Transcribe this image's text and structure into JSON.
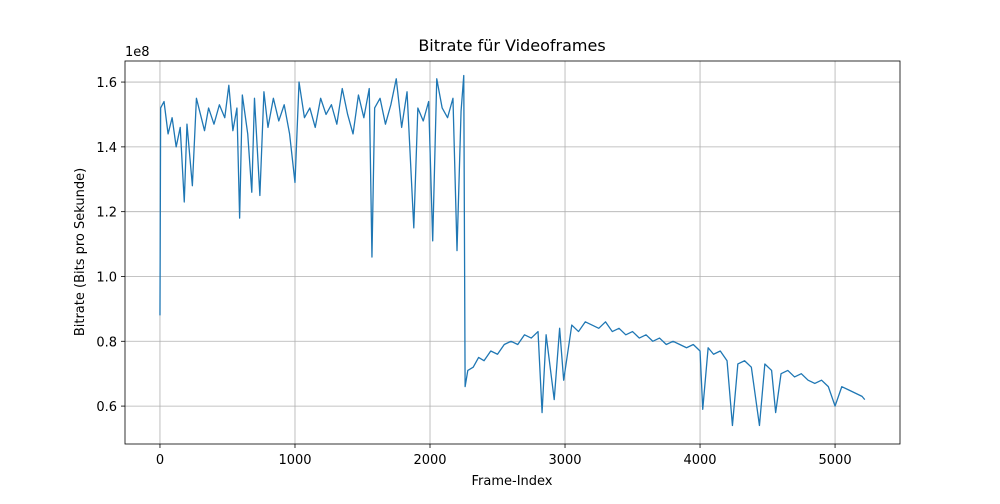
{
  "chart_data": {
    "type": "line",
    "title": "Bitrate für Videoframes",
    "xlabel": "Frame-Index",
    "ylabel": "Bitrate (Bits pro Sekunde)",
    "y_offset_label": "1e8",
    "color": "#1f77b4",
    "grid": true,
    "xlim": [
      -259,
      5481
    ],
    "ylim": [
      48300000,
      166500000
    ],
    "xticks": [
      0,
      1000,
      2000,
      3000,
      4000,
      5000
    ],
    "yticks": [
      {
        "value": 60000000,
        "label": "0.6"
      },
      {
        "value": 80000000,
        "label": "0.8"
      },
      {
        "value": 100000000,
        "label": "1.0"
      },
      {
        "value": 120000000,
        "label": "1.2"
      },
      {
        "value": 140000000,
        "label": "1.4"
      },
      {
        "value": 160000000,
        "label": "1.6"
      }
    ],
    "x": [
      0,
      5,
      30,
      60,
      90,
      120,
      150,
      180,
      200,
      240,
      270,
      300,
      330,
      360,
      400,
      440,
      480,
      510,
      540,
      570,
      590,
      610,
      650,
      680,
      700,
      740,
      770,
      800,
      840,
      880,
      920,
      960,
      1000,
      1030,
      1070,
      1110,
      1150,
      1190,
      1230,
      1270,
      1310,
      1350,
      1390,
      1430,
      1470,
      1510,
      1550,
      1570,
      1590,
      1630,
      1670,
      1710,
      1750,
      1790,
      1830,
      1880,
      1910,
      1950,
      1990,
      2020,
      2050,
      2090,
      2130,
      2170,
      2200,
      2230,
      2250,
      2260,
      2280,
      2320,
      2360,
      2400,
      2450,
      2500,
      2550,
      2600,
      2650,
      2700,
      2750,
      2800,
      2830,
      2860,
      2920,
      2960,
      2990,
      3050,
      3100,
      3150,
      3200,
      3250,
      3300,
      3350,
      3400,
      3450,
      3500,
      3550,
      3600,
      3650,
      3700,
      3750,
      3800,
      3850,
      3900,
      3950,
      4000,
      4020,
      4060,
      4100,
      4150,
      4200,
      4240,
      4280,
      4330,
      4380,
      4440,
      4480,
      4530,
      4560,
      4600,
      4650,
      4700,
      4750,
      4800,
      4850,
      4900,
      4950,
      5000,
      5050,
      5100,
      5150,
      5200,
      5220
    ],
    "values": [
      88000000.0,
      152000000.0,
      154000000.0,
      144000000.0,
      149000000.0,
      140000000.0,
      146000000.0,
      123000000.0,
      147000000.0,
      128000000.0,
      155000000.0,
      150000000.0,
      145000000.0,
      152000000.0,
      147000000.0,
      153000000.0,
      149000000.0,
      159000000.0,
      145000000.0,
      152000000.0,
      118000000.0,
      156000000.0,
      144000000.0,
      126000000.0,
      155000000.0,
      125000000.0,
      157000000.0,
      146000000.0,
      155000000.0,
      148000000.0,
      153000000.0,
      144000000.0,
      129000000.0,
      160000000.0,
      149000000.0,
      152000000.0,
      146000000.0,
      155000000.0,
      150000000.0,
      153000000.0,
      147000000.0,
      158000000.0,
      150000000.0,
      144000000.0,
      156000000.0,
      149000000.0,
      158000000.0,
      106000000.0,
      152000000.0,
      155000000.0,
      147000000.0,
      153000000.0,
      161000000.0,
      146000000.0,
      157000000.0,
      115000000.0,
      152000000.0,
      148000000.0,
      154000000.0,
      111000000.0,
      161000000.0,
      152000000.0,
      149000000.0,
      155000000.0,
      108000000.0,
      151000000.0,
      162000000.0,
      66000000.0,
      71000000.0,
      72000000.0,
      75000000.0,
      74000000.0,
      77000000.0,
      76000000.0,
      79000000.0,
      80000000.0,
      79000000.0,
      82000000.0,
      81000000.0,
      83000000.0,
      58000000.0,
      82000000.0,
      62000000.0,
      84000000.0,
      68000000.0,
      85000000.0,
      83000000.0,
      86000000.0,
      85000000.0,
      84000000.0,
      86000000.0,
      83000000.0,
      84000000.0,
      82000000.0,
      83000000.0,
      81000000.0,
      82000000.0,
      80000000.0,
      81000000.0,
      79000000.0,
      80000000.0,
      79000000.0,
      78000000.0,
      79000000.0,
      77000000.0,
      59000000.0,
      78000000.0,
      76000000.0,
      77000000.0,
      74000000.0,
      54000000.0,
      73000000.0,
      74000000.0,
      72000000.0,
      54000000.0,
      73000000.0,
      71000000.0,
      58000000.0,
      70000000.0,
      71000000.0,
      69000000.0,
      70000000.0,
      68000000.0,
      67000000.0,
      68000000.0,
      66000000.0,
      60000000.0,
      66000000.0,
      65000000.0,
      64000000.0,
      63000000.0,
      62000000.0
    ]
  }
}
